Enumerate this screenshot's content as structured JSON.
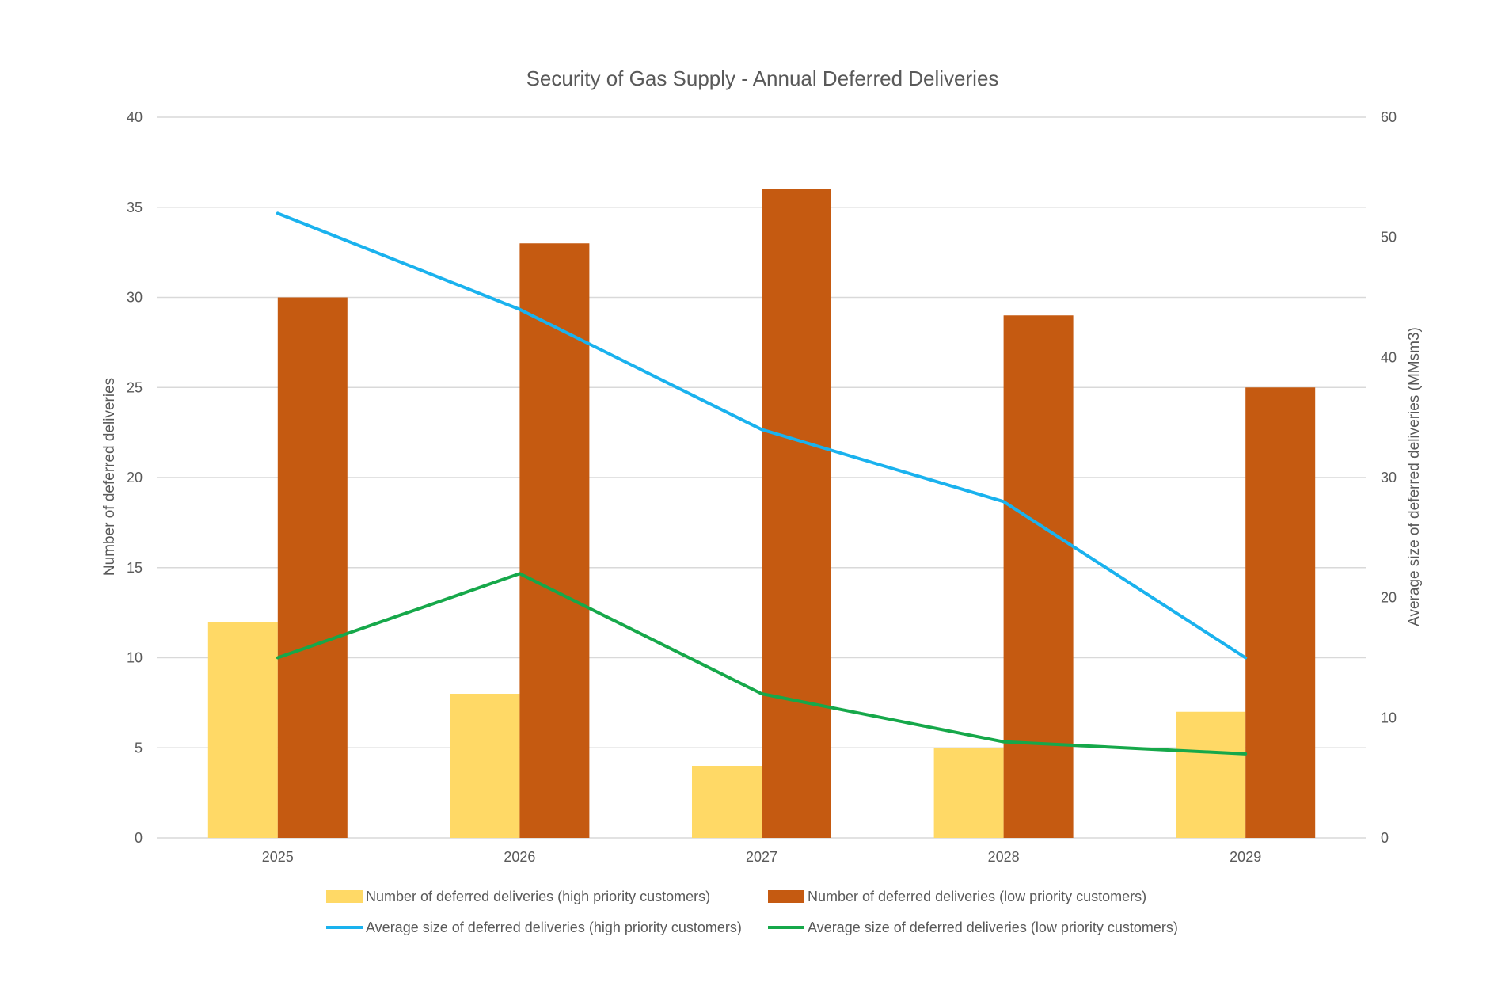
{
  "chart_data": {
    "type": "bar",
    "title": "Security of Gas Supply - Annual Deferred Deliveries",
    "categories": [
      "2025",
      "2026",
      "2027",
      "2028",
      "2029"
    ],
    "ylabel": "Number of deferred deliveries",
    "y2label": "Average size of deferred deliveries (MMsm3)",
    "ylim": [
      0,
      40
    ],
    "y2lim": [
      0,
      60
    ],
    "yticks": [
      "0",
      "5",
      "10",
      "15",
      "20",
      "25",
      "30",
      "35",
      "40"
    ],
    "y2ticks": [
      "0",
      "10",
      "20",
      "30",
      "40",
      "50",
      "60"
    ],
    "grid": true,
    "legend_position": "bottom",
    "series": [
      {
        "name": "Number of deferred deliveries (high priority customers)",
        "type": "bar",
        "axis": "left",
        "color": "#FFD966",
        "values": [
          12,
          8,
          4,
          5,
          7
        ]
      },
      {
        "name": "Number of deferred deliveries (low priority customers)",
        "type": "bar",
        "axis": "left",
        "color": "#C55A11",
        "values": [
          30,
          33,
          36,
          29,
          25
        ]
      },
      {
        "name": "Average size of deferred deliveries  (high priority customers)",
        "type": "line",
        "axis": "right",
        "color": "#1AB2EE",
        "values": [
          52,
          44,
          34,
          28,
          15
        ]
      },
      {
        "name": "Average size of deferred deliveries (low priority customers)",
        "type": "line",
        "axis": "right",
        "color": "#16A84A",
        "values": [
          15,
          22,
          12,
          8,
          7
        ]
      }
    ]
  }
}
